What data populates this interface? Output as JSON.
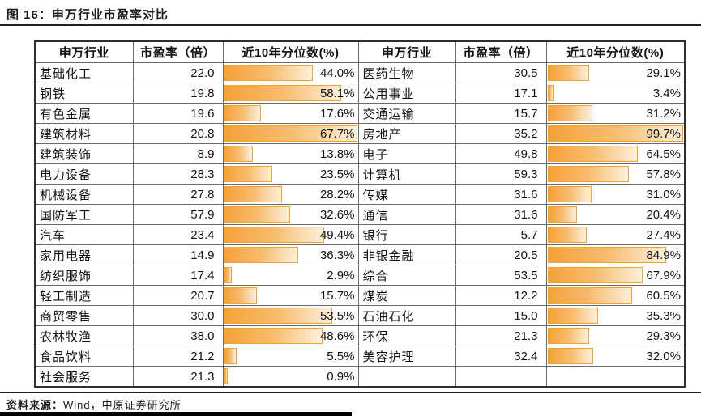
{
  "title": "图 16：申万行业市盈率对比",
  "footer": {
    "source_label": "资料来源：",
    "source_text": "Wind，中原证券研究所"
  },
  "colors": {
    "bar_fill": "#F6A139",
    "bar_fade": "#FDF0DB",
    "bar_border": "#F0A232",
    "rule_black": "#1f1f1f",
    "table_border_inner": "#6a6a6a",
    "table_border_outer": "#2f2f2f",
    "text": "#111111"
  },
  "chart_data": {
    "type": "table",
    "title": "图 16：申万行业市盈率对比",
    "columns": [
      "申万行业",
      "市盈率（倍）",
      "近10年分位数(%)"
    ],
    "note": "percentile cells contain orange gradient data bars scaled to each half-table's maximum value",
    "bar_scale_max": {
      "left": 67.7,
      "right": 99.7
    },
    "left_rows": [
      [
        "基础化工",
        22.0,
        44.0
      ],
      [
        "钢铁",
        19.8,
        58.1
      ],
      [
        "有色金属",
        19.6,
        17.6
      ],
      [
        "建筑材料",
        20.8,
        67.7
      ],
      [
        "建筑装饰",
        8.9,
        13.8
      ],
      [
        "电力设备",
        28.3,
        23.5
      ],
      [
        "机械设备",
        27.8,
        28.2
      ],
      [
        "国防军工",
        57.9,
        32.6
      ],
      [
        "汽车",
        23.4,
        49.4
      ],
      [
        "家用电器",
        14.9,
        36.3
      ],
      [
        "纺织服饰",
        17.4,
        2.9
      ],
      [
        "轻工制造",
        20.7,
        15.7
      ],
      [
        "商贸零售",
        30.0,
        53.5
      ],
      [
        "农林牧渔",
        38.0,
        48.6
      ],
      [
        "食品饮料",
        21.2,
        5.5
      ],
      [
        "社会服务",
        21.3,
        0.9
      ]
    ],
    "right_rows": [
      [
        "医药生物",
        30.5,
        29.1
      ],
      [
        "公用事业",
        17.1,
        3.4
      ],
      [
        "交通运输",
        15.7,
        31.2
      ],
      [
        "房地产",
        35.2,
        99.7
      ],
      [
        "电子",
        49.8,
        64.5
      ],
      [
        "计算机",
        59.3,
        57.8
      ],
      [
        "传媒",
        31.6,
        31.0
      ],
      [
        "通信",
        31.6,
        20.4
      ],
      [
        "银行",
        5.7,
        27.4
      ],
      [
        "非银金融",
        20.5,
        84.9
      ],
      [
        "综合",
        53.5,
        67.9
      ],
      [
        "煤炭",
        12.2,
        60.5
      ],
      [
        "石油石化",
        15.0,
        35.3
      ],
      [
        "环保",
        21.3,
        29.3
      ],
      [
        "美容护理",
        32.4,
        32.0
      ]
    ]
  }
}
